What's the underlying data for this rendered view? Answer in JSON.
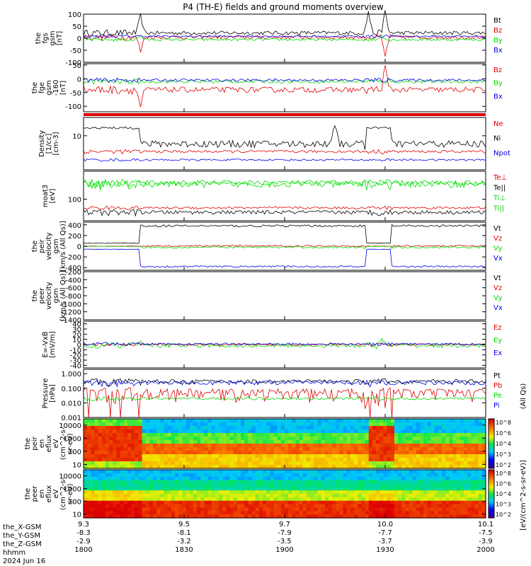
{
  "title": "P4 (TH-E) fields and ground moments overview",
  "colors": {
    "black": "#000000",
    "red": "#e00000",
    "green": "#00dd00",
    "blue": "#0000ee"
  },
  "chart_data": {
    "type": "line",
    "title": "P4 (TH-E) fields and ground moments overview",
    "date": "2024 Jun 16",
    "x_axis": {
      "rows": [
        "",
        "the_X-GSM",
        "the_Y-GSM",
        "the_Z-GSM",
        "hhmm"
      ],
      "ticks": [
        {
          "t": 0,
          "v": [
            "9.3",
            "-8.3",
            "-2.9",
            "1800"
          ]
        },
        {
          "t": 30,
          "v": [
            "9.5",
            "-8.1",
            "-3.2",
            "1830"
          ]
        },
        {
          "t": 60,
          "v": [
            "9.7",
            "-7.9",
            "-3.5",
            "1900"
          ]
        },
        {
          "t": 90,
          "v": [
            "10.0",
            "-7.7",
            "-3.7",
            "1930"
          ]
        },
        {
          "t": 120,
          "v": [
            "10.1",
            "-7.5",
            "-3.9",
            "2000"
          ]
        }
      ],
      "tmin": 0,
      "tmax": 120
    },
    "panels": [
      {
        "id": "fgs-gsm",
        "ylabel": [
          "the",
          "fgs",
          "gsm",
          "[nT]"
        ],
        "ylim": [
          -100,
          100
        ],
        "ticks": [
          {
            "v": 100,
            "l": "100"
          },
          {
            "v": 50,
            "l": "50"
          },
          {
            "v": 0,
            "l": "0"
          },
          {
            "v": -50,
            "l": "-50"
          },
          {
            "v": -100,
            "l": "-100"
          }
        ],
        "series": [
          {
            "name": "Bt",
            "color": "#000000",
            "base": 22,
            "noise": 8,
            "events": [
              [
                17,
                70
              ],
              [
                85,
                90
              ],
              [
                90,
                85
              ]
            ]
          },
          {
            "name": "Bz",
            "color": "#e00000",
            "base": 4,
            "noise": 8,
            "events": [
              [
                17,
                -60
              ],
              [
                90,
                -80
              ]
            ]
          },
          {
            "name": "By",
            "color": "#00dd00",
            "base": -6,
            "noise": 5,
            "events": [
              [
                17,
                20
              ],
              [
                89,
                25
              ]
            ]
          },
          {
            "name": "Bx",
            "color": "#0000ee",
            "base": 8,
            "noise": 4,
            "events": []
          }
        ]
      },
      {
        "id": "fge-gsm",
        "ylabel": [
          "the",
          "fge",
          "gsm",
          "-160",
          "[nT]"
        ],
        "ylim": [
          -120,
          55
        ],
        "ticks": [
          {
            "v": 50,
            "l": "50"
          },
          {
            "v": 0,
            "l": "0"
          },
          {
            "v": -50,
            "l": "-50"
          },
          {
            "v": -100,
            "l": "-100"
          }
        ],
        "series": [
          {
            "name": "Bz",
            "color": "#e00000",
            "base": -40,
            "noise": 10,
            "events": [
              [
                17,
                -60
              ],
              [
                90,
                80
              ]
            ]
          },
          {
            "name": "By",
            "color": "#00dd00",
            "base": -10,
            "noise": 6,
            "events": []
          },
          {
            "name": "Bx",
            "color": "#0000ee",
            "base": -5,
            "noise": 5,
            "events": []
          }
        ]
      },
      {
        "id": "density",
        "ylabel": [
          "Density",
          "[1/cc]",
          "[cm-3]"
        ],
        "ylim": [
          0.5,
          50
        ],
        "log": true,
        "ticks": [
          {
            "v": 10,
            "l": "10"
          }
        ],
        "series": [
          {
            "name": "Ne",
            "color": "#e00000",
            "base": 2.5,
            "noise": 0.3,
            "events": []
          },
          {
            "name": "Ni",
            "color": "#000000",
            "base": 5,
            "noise": 1.5,
            "events": [
              [
                0,
                12
              ],
              [
                75,
                20
              ]
            ]
          },
          {
            "name": "Npot",
            "color": "#0000ee",
            "base": 1.2,
            "noise": 0.1,
            "events": []
          }
        ]
      },
      {
        "id": "moat",
        "ylabel": [
          "moat3",
          "[eV]"
        ],
        "ylim": [
          10,
          2000
        ],
        "log": true,
        "ticks": [
          {
            "v": 100,
            "l": "100"
          }
        ],
        "series": [
          {
            "name": "Te⊥",
            "color": "#e00000",
            "base": 40,
            "noise": 5,
            "events": []
          },
          {
            "name": "Te||",
            "color": "#000000",
            "base": 25,
            "noise": 5,
            "events": []
          },
          {
            "name": "Ti⊥",
            "color": "#00dd00",
            "base": 600,
            "noise": 150,
            "events": []
          },
          {
            "name": "Ti||",
            "color": "#00dd00",
            "base": 500,
            "noise": 150,
            "events": []
          }
        ]
      },
      {
        "id": "peir-velocity",
        "ylabel": [
          "the",
          "peir",
          "velocity",
          "gsm",
          "[km/s (All Qs)]"
        ],
        "ylim": [
          -450,
          450
        ],
        "ticks": [
          {
            "v": 400,
            "l": "400"
          },
          {
            "v": 200,
            "l": "200"
          },
          {
            "v": 0,
            "l": "0"
          },
          {
            "v": -200,
            "l": "-200"
          },
          {
            "v": -400,
            "l": "-400"
          }
        ],
        "series": [
          {
            "name": "Vt",
            "color": "#000000",
            "base": 380,
            "noise": 20,
            "events": []
          },
          {
            "name": "Vz",
            "color": "#e00000",
            "base": 5,
            "noise": 15,
            "events": []
          },
          {
            "name": "Vy",
            "color": "#00dd00",
            "base": -20,
            "noise": 20,
            "events": []
          },
          {
            "name": "Vx",
            "color": "#0000ee",
            "base": -380,
            "noise": 15,
            "events": []
          }
        ]
      },
      {
        "id": "peer-velocity",
        "ylabel": [
          "the",
          "peer",
          "velocity",
          "gsm",
          "[km/s (All Qs)]"
        ],
        "ylim": [
          -1400,
          -200
        ],
        "ticks": [
          {
            "v": -200,
            "l": "-200"
          },
          {
            "v": -400,
            "l": "-400"
          },
          {
            "v": -600,
            "l": "-600"
          },
          {
            "v": -800,
            "l": "-800"
          },
          {
            "v": -1000,
            "l": "-1000"
          },
          {
            "v": -1200,
            "l": "-1200"
          },
          {
            "v": -1400,
            "l": "-1400"
          }
        ],
        "series": [
          {
            "name": "Vt",
            "color": "#000000",
            "nodata": true
          },
          {
            "name": "Vz",
            "color": "#e00000",
            "nodata": true
          },
          {
            "name": "Vy",
            "color": "#00dd00",
            "nodata": true
          },
          {
            "name": "Vx",
            "color": "#0000ee",
            "nodata": true
          }
        ]
      },
      {
        "id": "e-field",
        "ylabel": [
          "E=-VxB",
          "[mV/m]"
        ],
        "ylim": [
          -45,
          45
        ],
        "ticks": [
          {
            "v": 40,
            "l": "40"
          },
          {
            "v": 30,
            "l": "30"
          },
          {
            "v": 20,
            "l": "20"
          },
          {
            "v": 10,
            "l": "10"
          },
          {
            "v": 0,
            "l": "0"
          },
          {
            "v": -10,
            "l": "-10"
          },
          {
            "v": -20,
            "l": "-20"
          },
          {
            "v": -30,
            "l": "-30"
          },
          {
            "v": -40,
            "l": "-40"
          }
        ],
        "series": [
          {
            "name": "Ez",
            "color": "#e00000",
            "base": 0,
            "noise": 2,
            "events": []
          },
          {
            "name": "Ey",
            "color": "#00dd00",
            "base": -2,
            "noise": 4,
            "events": [
              [
                17,
                15
              ],
              [
                89,
                15
              ]
            ]
          },
          {
            "name": "Ex",
            "color": "#0000ee",
            "base": 1,
            "noise": 2,
            "events": []
          }
        ]
      },
      {
        "id": "pressure",
        "ylabel": [
          "Pressure",
          "[nPa]"
        ],
        "ylim": [
          0.001,
          2
        ],
        "log": true,
        "ticks": [
          {
            "v": 1,
            "l": "1.000"
          },
          {
            "v": 0.1,
            "l": "0.100"
          },
          {
            "v": 0.01,
            "l": "0.010"
          },
          {
            "v": 0.001,
            "l": "0.001"
          }
        ],
        "series": [
          {
            "name": "Pt",
            "color": "#000000",
            "base": 0.3,
            "noise": 0.1,
            "events": []
          },
          {
            "name": "Pb",
            "color": "#e00000",
            "base": 0.05,
            "noise": 0.04,
            "events": []
          },
          {
            "name": "Pe",
            "color": "#00dd00",
            "base": 0.02,
            "noise": 0.004,
            "events": []
          },
          {
            "name": "Pi",
            "color": "#0000ee",
            "base": 0.25,
            "noise": 0.08,
            "events": []
          }
        ]
      },
      {
        "id": "peir-eflux",
        "type": "heatmap",
        "ylabel": [
          "the",
          "peir",
          "en",
          "eflux",
          "eV",
          "(cm^2-s-",
          "sr-eV)"
        ],
        "ylim": [
          5,
          30000
        ],
        "log": true,
        "ticks": [
          {
            "v": 10000,
            "l": "10000"
          },
          {
            "v": 1000,
            "l": "1000"
          },
          {
            "v": 100,
            "l": "100"
          },
          {
            "v": 10,
            "l": "10"
          }
        ]
      },
      {
        "id": "peer-eflux",
        "type": "heatmap",
        "ylabel": [
          "the",
          "peer",
          "en",
          "eflux",
          "eV",
          "(cm^2-s-",
          "sr-eV)"
        ],
        "ylim": [
          5,
          30000
        ],
        "log": true,
        "ticks": [
          {
            "v": 10000,
            "l": "10000"
          },
          {
            "v": 1000,
            "l": "1000"
          },
          {
            "v": 100,
            "l": "100"
          },
          {
            "v": 10,
            "l": "10"
          }
        ]
      }
    ],
    "colorbar": {
      "label": "[eV/(cm^2-s-sr-eV)]",
      "sublabel": "(All Qs)",
      "ticks_upper": [
        "10^8",
        "10^6",
        "10^4",
        "10^3",
        "10^2"
      ],
      "ticks_lower": [
        "10^8",
        "10^6",
        "10^4",
        "10^3",
        "10^2"
      ]
    }
  }
}
